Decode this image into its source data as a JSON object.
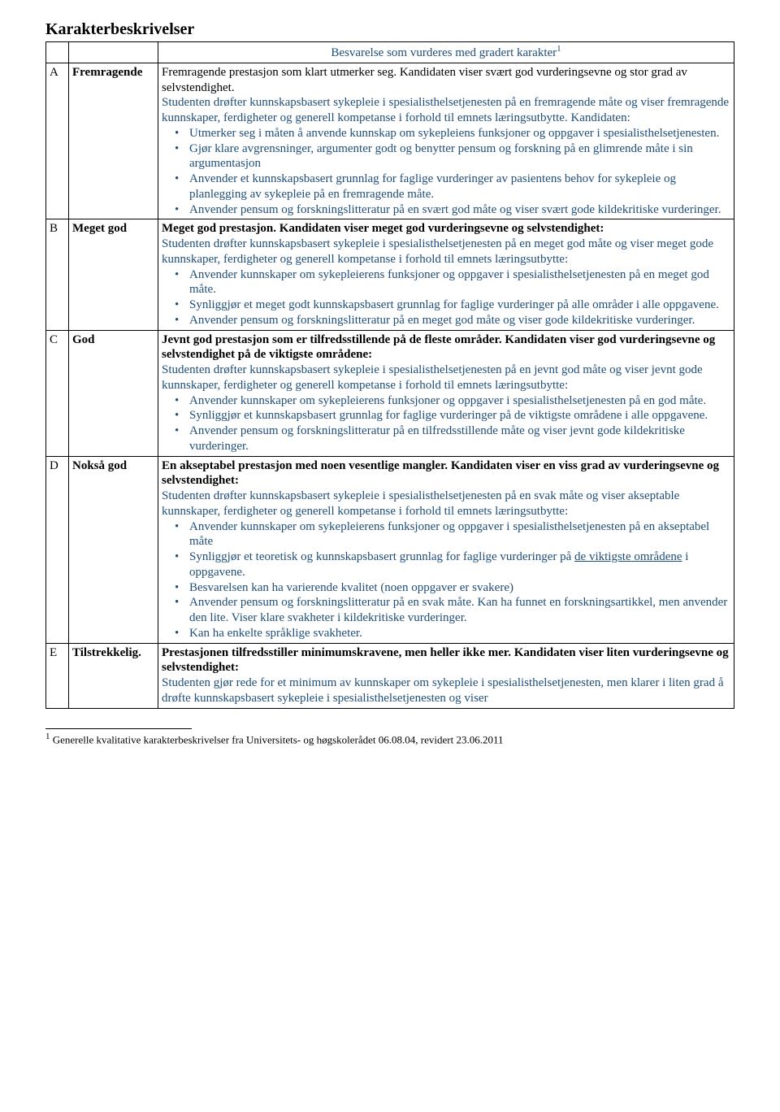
{
  "doc": {
    "title": "Karakterbeskrivelser",
    "tableHeader": "Besvarelse som vurderes med gradert karakter",
    "tableHeaderSup": "1",
    "footnote": {
      "num": "1",
      "text": " Generelle kvalitative karakterbeskrivelser fra Universitets- og høgskolerådet 06.08.04, revidert 23.06.2011"
    }
  },
  "grades": {
    "A": {
      "letter": "A",
      "name": "Fremragende",
      "lead": "Fremragende prestasjon som klart utmerker seg. Kandidaten viser svært god vurderingsevne og stor grad av selvstendighet.",
      "para": "Studenten drøfter kunnskapsbasert sykepleie i spesialisthelsetjenesten på en fremragende måte og viser fremragende kunnskaper, ferdigheter og generell kompetanse i forhold til emnets læringsutbytte. Kandidaten:",
      "bullets": [
        "Utmerker seg i måten å anvende kunnskap om sykepleiens funksjoner og oppgaver i spesialisthelsetjenesten.",
        "Gjør klare avgrensninger, argumenter godt og benytter pensum og forskning på en glimrende måte i sin argumentasjon",
        "Anvender et kunnskapsbasert grunnlag for faglige vurderinger av pasientens behov for sykepleie og planlegging av sykepleie på en fremragende måte.",
        "Anvender pensum og forskningslitteratur på en svært god måte og viser svært gode kildekritiske vurderinger."
      ]
    },
    "B": {
      "letter": "B",
      "name": "Meget god",
      "leadBold": "Meget god prestasjon. Kandidaten viser meget god vurderingsevne og selvstendighet:",
      "para": "Studenten drøfter kunnskapsbasert sykepleie i spesialisthelsetjenesten på en meget god måte og viser meget gode kunnskaper, ferdigheter og generell kompetanse i forhold til emnets læringsutbytte:",
      "bullets": [
        "Anvender kunnskaper om sykepleierens funksjoner og oppgaver i spesialisthelsetjenesten på en meget god måte.",
        "Synliggjør et meget godt kunnskapsbasert grunnlag for faglige vurderinger på alle områder i alle oppgavene.",
        "Anvender pensum og forskningslitteratur på en meget god måte og viser gode kildekritiske vurderinger."
      ]
    },
    "C": {
      "letter": "C",
      "name": "God",
      "leadBold": "Jevnt god prestasjon som er tilfredsstillende på de fleste områder. Kandidaten viser god vurderingsevne og selvstendighet på de viktigste områdene:",
      "para": "Studenten drøfter kunnskapsbasert sykepleie i spesialisthelsetjenesten på en jevnt god måte og viser jevnt gode kunnskaper, ferdigheter og generell kompetanse i forhold til emnets læringsutbytte:",
      "bullets": [
        "Anvender kunnskaper om sykepleierens funksjoner og oppgaver i spesialisthelsetjenesten på en god måte.",
        "Synliggjør et kunnskapsbasert grunnlag for faglige vurderinger på de viktigste områdene i alle oppgavene.",
        "Anvender pensum og forskningslitteratur på en tilfredsstillende måte og viser jevnt gode kildekritiske vurderinger."
      ]
    },
    "D": {
      "letter": "D",
      "name": "Nokså god",
      "leadBold": "En akseptabel prestasjon med noen vesentlige mangler. Kandidaten viser en viss grad av vurderingsevne og selvstendighet:",
      "para": "Studenten drøfter kunnskapsbasert sykepleie i spesialisthelsetjenesten på en svak måte og viser akseptable kunnskaper, ferdigheter og generell kompetanse i forhold til emnets læringsutbytte:",
      "bullets": [
        "Anvender kunnskaper om sykepleierens funksjoner og oppgaver i spesialisthelsetjenesten på en akseptabel måte",
        "",
        "Besvarelsen kan ha varierende kvalitet (noen oppgaver er svakere)",
        "Anvender pensum og forskningslitteratur på en svak måte. Kan ha funnet en forskningsartikkel, men anvender den lite. Viser klare svakheter i kildekritiske vurderinger.",
        "Kan ha enkelte språklige svakheter."
      ],
      "bullet2_pre": "Synliggjør et teoretisk og kunnskapsbasert grunnlag for faglige vurderinger på ",
      "bullet2_underline": "de viktigste områdene",
      "bullet2_post": " i oppgavene."
    },
    "E": {
      "letter": "E",
      "name": "Tilstrekkelig.",
      "leadBold": "Prestasjonen tilfredsstiller minimumskravene, men heller ikke mer. Kandidaten viser liten vurderingsevne og selvstendighet:",
      "para": "Studenten gjør rede for et minimum av kunnskaper om sykepleie i spesialisthelsetjenesten, men klarer i liten grad å drøfte kunnskapsbasert sykepleie i spesialisthelsetjenesten og viser"
    }
  }
}
